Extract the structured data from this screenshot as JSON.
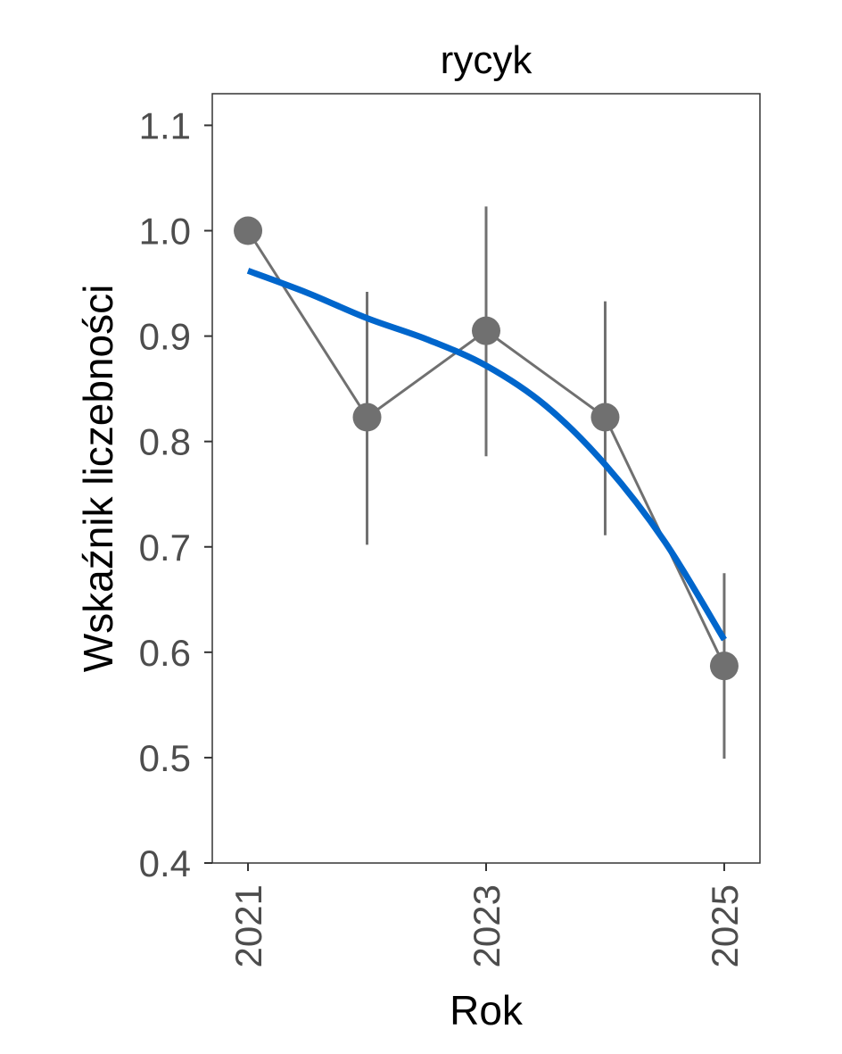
{
  "chart_data": {
    "type": "line",
    "title": "rycyk",
    "xlabel": "Rok",
    "ylabel": "Wskaźnik liczebności",
    "xlim": [
      2020.7,
      2025.3
    ],
    "ylim": [
      0.4,
      1.13
    ],
    "x_ticks": [
      2021,
      2023,
      2025
    ],
    "y_ticks": [
      0.4,
      0.5,
      0.6,
      0.7,
      0.8,
      0.9,
      1.0,
      1.1
    ],
    "y_tick_labels": [
      "0.4",
      "0.5",
      "0.6",
      "0.7",
      "0.8",
      "0.9",
      "1.0",
      "1.1"
    ],
    "x_tick_labels": [
      "2021",
      "2023",
      "2025"
    ],
    "grid": false,
    "series": [
      {
        "type": "line+points",
        "color": "#707070",
        "x": [
          2021,
          2022,
          2023,
          2024,
          2025
        ],
        "y": [
          1.0,
          0.823,
          0.905,
          0.823,
          0.587
        ],
        "error_low": [
          null,
          0.702,
          0.786,
          0.711,
          0.499
        ],
        "error_high": [
          null,
          0.942,
          1.023,
          0.933,
          0.675
        ]
      },
      {
        "type": "smooth",
        "color": "#0066cc",
        "x": [
          2021,
          2021.5,
          2022,
          2022.5,
          2023,
          2023.5,
          2024,
          2024.5,
          2025
        ],
        "y": [
          0.962,
          0.941,
          0.917,
          0.897,
          0.872,
          0.834,
          0.778,
          0.705,
          0.612
        ]
      }
    ]
  }
}
